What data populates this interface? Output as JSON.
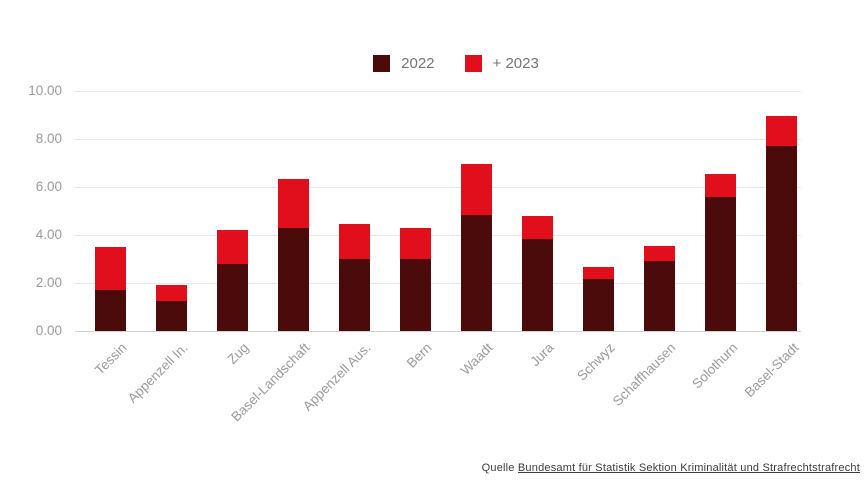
{
  "colors": {
    "series_2022": "#4b0b0b",
    "series_2023": "#e10e1c",
    "gridline": "#e8e8e8",
    "axis_line": "#d2d2d2",
    "tick_text": "#9b9b9b",
    "legend_text": "#757575",
    "source_text": "#3c3c3c"
  },
  "chart_data": {
    "type": "bar",
    "stacked": true,
    "title": "",
    "categories": [
      "Tessin",
      "Appenzell In.",
      "Zug",
      "Basel-Landschaft",
      "Appenzell Aus.",
      "Bern",
      "Waadt",
      "Jura",
      "Schwyz",
      "Schaffhausen",
      "Solothurn",
      "Basel-Stadt"
    ],
    "series": [
      {
        "name": "2022",
        "values": [
          1.7,
          1.25,
          2.8,
          4.3,
          3.0,
          3.0,
          4.85,
          3.85,
          2.15,
          2.9,
          5.6,
          7.7
        ]
      },
      {
        "name": "+ 2023",
        "values": [
          1.8,
          0.65,
          1.4,
          2.05,
          1.45,
          1.3,
          2.1,
          0.95,
          0.5,
          0.65,
          0.95,
          1.25
        ]
      }
    ],
    "stacked_totals": [
      3.5,
      1.9,
      4.2,
      6.35,
      4.45,
      4.3,
      6.95,
      4.8,
      2.65,
      3.55,
      6.55,
      8.95
    ],
    "xlabel": "",
    "ylabel": "",
    "ylim": [
      0,
      10
    ],
    "y_tick_labels": [
      "0.00",
      "2.00",
      "4.00",
      "6.00",
      "8.00",
      "10.00"
    ],
    "grid": "horizontal",
    "legend_position": "top-center"
  },
  "source": {
    "prefix": "Quelle ",
    "link_text": "Bundesamt für Statistik Sektion Kriminalität und Strafrechtstrafrecht"
  }
}
